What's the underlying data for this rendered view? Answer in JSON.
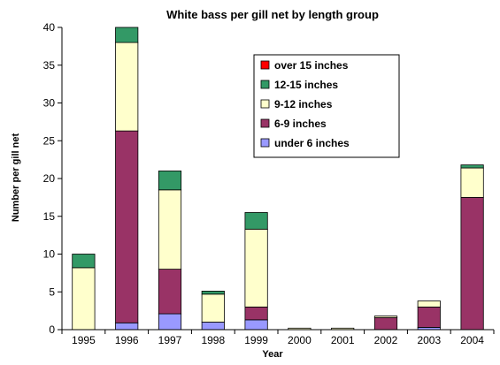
{
  "chart_data": {
    "type": "bar",
    "stacked": true,
    "title": "White bass per gill net by length group",
    "xlabel": "Year",
    "ylabel": "Number per gill net",
    "ylim": [
      0,
      40
    ],
    "yticks": [
      0,
      5,
      10,
      15,
      20,
      25,
      30,
      35,
      40
    ],
    "grid": false,
    "legend_position": "top-right",
    "categories": [
      "1995",
      "1996",
      "1997",
      "1998",
      "1999",
      "2000",
      "2001",
      "2002",
      "2003",
      "2004"
    ],
    "series": [
      {
        "name": "under 6 inches",
        "color": "#9999ff",
        "values": [
          0,
          0.9,
          2.1,
          1.0,
          1.3,
          0,
          0,
          0,
          0.3,
          0
        ]
      },
      {
        "name": "6-9 inches",
        "color": "#993366",
        "values": [
          0,
          25.4,
          5.9,
          0,
          1.7,
          0,
          0,
          1.6,
          2.7,
          17.5
        ]
      },
      {
        "name": "9-12 inches",
        "color": "#ffffcc",
        "values": [
          8.2,
          11.7,
          10.5,
          3.7,
          10.3,
          0.2,
          0.2,
          0.2,
          0.8,
          3.9
        ]
      },
      {
        "name": "12-15 inches",
        "color": "#339966",
        "values": [
          1.8,
          2.0,
          2.5,
          0.4,
          2.2,
          0,
          0,
          0,
          0,
          0.4
        ]
      },
      {
        "name": "over 15 inches",
        "color": "#ff0000",
        "values": [
          0,
          0,
          0,
          0,
          0,
          0,
          0,
          0,
          0,
          0
        ]
      }
    ],
    "legend_order": [
      "over 15 inches",
      "12-15 inches",
      "9-12 inches",
      "6-9 inches",
      "under 6 inches"
    ]
  }
}
